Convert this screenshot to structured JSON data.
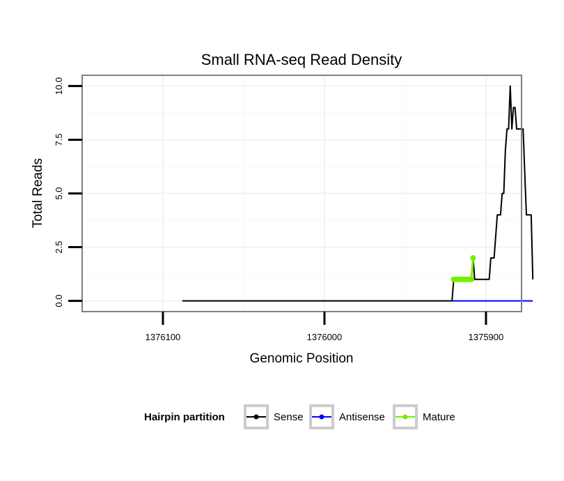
{
  "chart_data": {
    "type": "line",
    "title": "Small RNA-seq Read Density",
    "xlabel": "Genomic Position",
    "ylabel": "Total Reads",
    "xlim": [
      1376150,
      1375878
    ],
    "ylim": [
      -0.5,
      10.5
    ],
    "x_ticks": [
      1376100,
      1376000,
      1375900
    ],
    "x_tick_labels": [
      "1376100",
      "1376000",
      "1375900"
    ],
    "y_ticks": [
      0,
      2.5,
      5,
      7.5,
      10
    ],
    "y_tick_labels": [
      "0.0",
      "2.5",
      "5.0",
      "7.5",
      "10.0"
    ],
    "grid": true,
    "legend_position": "bottom",
    "legend": {
      "title": "Hairpin partition",
      "entries": [
        {
          "label": "Sense",
          "color": "#000000"
        },
        {
          "label": "Antisense",
          "color": "#0000ff"
        },
        {
          "label": "Mature",
          "color": "#77ee00"
        }
      ]
    },
    "series": [
      {
        "name": "Sense",
        "color": "#000000",
        "points": [
          [
            1376088,
            0
          ],
          [
            1375921,
            0
          ],
          [
            1375920,
            1
          ],
          [
            1375909,
            1
          ],
          [
            1375908,
            2
          ],
          [
            1375907,
            1
          ],
          [
            1375898,
            1
          ],
          [
            1375897,
            2
          ],
          [
            1375895,
            2
          ],
          [
            1375894,
            3
          ],
          [
            1375893,
            4
          ],
          [
            1375891,
            4
          ],
          [
            1375890,
            5
          ],
          [
            1375889,
            5
          ],
          [
            1375888,
            7
          ],
          [
            1375887,
            8
          ],
          [
            1375886,
            8
          ],
          [
            1375885,
            10
          ],
          [
            1375884,
            8
          ],
          [
            1375883,
            9
          ],
          [
            1375882,
            9
          ],
          [
            1375881,
            8
          ],
          [
            1375877,
            8
          ],
          [
            1375876,
            6
          ],
          [
            1375875,
            4
          ],
          [
            1375872,
            4
          ],
          [
            1375871,
            1
          ]
        ]
      },
      {
        "name": "Antisense",
        "color": "#0000ff",
        "points": [
          [
            1375921,
            0
          ],
          [
            1375871,
            0
          ]
        ]
      },
      {
        "name": "Mature",
        "color": "#77ee00",
        "points": [
          [
            1375920,
            1
          ],
          [
            1375919,
            1
          ],
          [
            1375918,
            1
          ],
          [
            1375917,
            1
          ],
          [
            1375916,
            1
          ],
          [
            1375915,
            1
          ],
          [
            1375914,
            1
          ],
          [
            1375913,
            1
          ],
          [
            1375912,
            1
          ],
          [
            1375911,
            1
          ],
          [
            1375910,
            1
          ],
          [
            1375909,
            1
          ],
          [
            1375908,
            2
          ]
        ]
      }
    ]
  }
}
